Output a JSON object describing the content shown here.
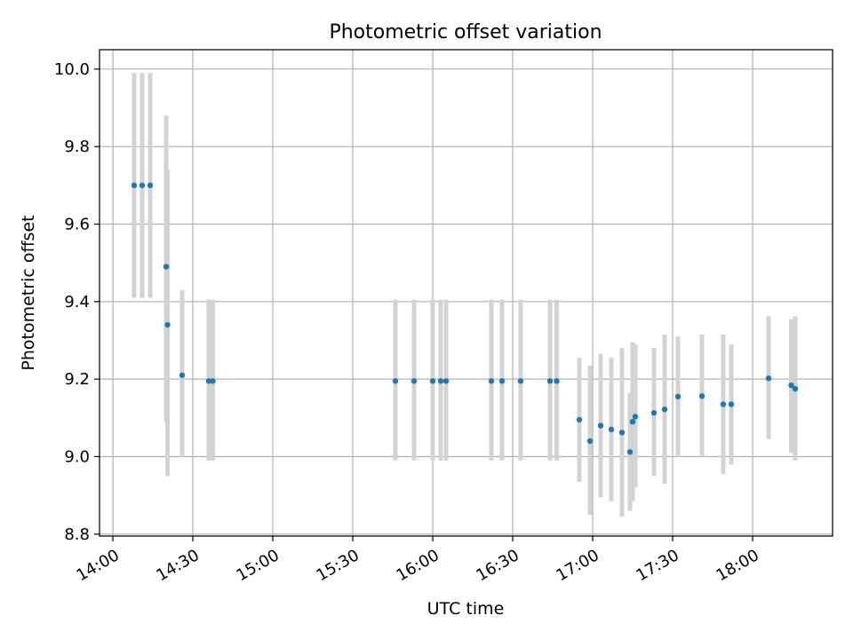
{
  "chart_data": {
    "type": "scatter",
    "title": "Photometric offset variation",
    "xlabel": "UTC time",
    "ylabel": "Photometric offset",
    "xlim": [
      "13:55",
      "18:30"
    ],
    "ylim": [
      8.795,
      10.05
    ],
    "grid": true,
    "x_ticks": [
      "14:00",
      "14:30",
      "15:00",
      "15:30",
      "16:00",
      "16:30",
      "17:00",
      "17:30",
      "18:00"
    ],
    "y_ticks": [
      "8.8",
      "9.0",
      "9.2",
      "9.4",
      "9.6",
      "9.8",
      "10.0"
    ],
    "colors": {
      "point": "#1f77b4",
      "errorbar": "#d3d3d3",
      "grid": "#b0b0b0",
      "axes": "#000000"
    },
    "series": [
      {
        "points": [
          {
            "x": "14:08",
            "y": 9.7,
            "yerr_low": 9.41,
            "yerr_high": 9.99
          },
          {
            "x": "14:11",
            "y": 9.7,
            "yerr_low": 9.41,
            "yerr_high": 9.99
          },
          {
            "x": "14:14",
            "y": 9.7,
            "yerr_low": 9.41,
            "yerr_high": 9.99
          },
          {
            "x": "14:20",
            "y": 9.49,
            "yerr_low": 9.09,
            "yerr_high": 9.88
          },
          {
            "x": "14:20.5",
            "y": 9.34,
            "yerr_low": 8.95,
            "yerr_high": 9.74
          },
          {
            "x": "14:26",
            "y": 9.21,
            "yerr_low": 9.0,
            "yerr_high": 9.43
          },
          {
            "x": "14:36",
            "y": 9.195,
            "yerr_low": 8.99,
            "yerr_high": 9.405
          },
          {
            "x": "14:37.5",
            "y": 9.195,
            "yerr_low": 8.99,
            "yerr_high": 9.405
          },
          {
            "x": "15:46",
            "y": 9.195,
            "yerr_low": 8.99,
            "yerr_high": 9.405
          },
          {
            "x": "15:53",
            "y": 9.195,
            "yerr_low": 8.99,
            "yerr_high": 9.405
          },
          {
            "x": "16:00",
            "y": 9.195,
            "yerr_low": 8.99,
            "yerr_high": 9.405
          },
          {
            "x": "16:03",
            "y": 9.195,
            "yerr_low": 8.99,
            "yerr_high": 9.405
          },
          {
            "x": "16:05",
            "y": 9.195,
            "yerr_low": 8.99,
            "yerr_high": 9.405
          },
          {
            "x": "16:22",
            "y": 9.195,
            "yerr_low": 8.99,
            "yerr_high": 9.405
          },
          {
            "x": "16:26",
            "y": 9.195,
            "yerr_low": 8.99,
            "yerr_high": 9.405
          },
          {
            "x": "16:33",
            "y": 9.195,
            "yerr_low": 8.99,
            "yerr_high": 9.405
          },
          {
            "x": "16:44",
            "y": 9.195,
            "yerr_low": 8.99,
            "yerr_high": 9.405
          },
          {
            "x": "16:46.5",
            "y": 9.195,
            "yerr_low": 8.99,
            "yerr_high": 9.405
          },
          {
            "x": "16:55",
            "y": 9.095,
            "yerr_low": 8.935,
            "yerr_high": 9.255
          },
          {
            "x": "16:59",
            "y": 9.04,
            "yerr_low": 8.85,
            "yerr_high": 9.235
          },
          {
            "x": "17:03",
            "y": 9.08,
            "yerr_low": 8.895,
            "yerr_high": 9.265
          },
          {
            "x": "17:07",
            "y": 9.07,
            "yerr_low": 8.885,
            "yerr_high": 9.255
          },
          {
            "x": "17:11",
            "y": 9.062,
            "yerr_low": 8.845,
            "yerr_high": 9.28
          },
          {
            "x": "17:14",
            "y": 9.012,
            "yerr_low": 8.86,
            "yerr_high": 9.165
          },
          {
            "x": "17:15",
            "y": 9.09,
            "yerr_low": 8.885,
            "yerr_high": 9.295
          },
          {
            "x": "17:16",
            "y": 9.103,
            "yerr_low": 8.92,
            "yerr_high": 9.29
          },
          {
            "x": "17:23",
            "y": 9.113,
            "yerr_low": 8.95,
            "yerr_high": 9.28
          },
          {
            "x": "17:27",
            "y": 9.122,
            "yerr_low": 8.93,
            "yerr_high": 9.315
          },
          {
            "x": "17:32",
            "y": 9.155,
            "yerr_low": 9.0,
            "yerr_high": 9.31
          },
          {
            "x": "17:41",
            "y": 9.156,
            "yerr_low": 9.0,
            "yerr_high": 9.315
          },
          {
            "x": "17:49",
            "y": 9.135,
            "yerr_low": 8.955,
            "yerr_high": 9.315
          },
          {
            "x": "17:52",
            "y": 9.135,
            "yerr_low": 8.98,
            "yerr_high": 9.29
          },
          {
            "x": "18:06",
            "y": 9.202,
            "yerr_low": 9.045,
            "yerr_high": 9.362
          },
          {
            "x": "18:14.5",
            "y": 9.184,
            "yerr_low": 9.01,
            "yerr_high": 9.355
          },
          {
            "x": "18:16",
            "y": 9.175,
            "yerr_low": 8.99,
            "yerr_high": 9.362
          }
        ]
      }
    ]
  }
}
